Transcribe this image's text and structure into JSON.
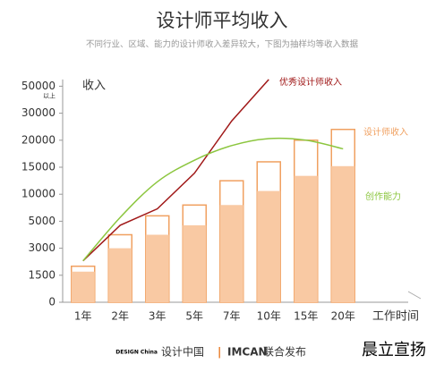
{
  "chart_data": {
    "type": "bar",
    "title": "设计师平均收入",
    "subtitle": "不同行业、区域、能力的设计师收入差异较大，下图为抽样均等收入数据",
    "y_label": "收入",
    "x_label": "工作时间",
    "top_tick_note": "以上",
    "categories": [
      "1年",
      "2年",
      "3年",
      "5年",
      "7年",
      "10年",
      "15年",
      "20年"
    ],
    "ylim": [
      0,
      55000
    ],
    "yticks": [
      0,
      1500,
      3000,
      5000,
      10000,
      15000,
      20000,
      30000,
      50000
    ],
    "series": [
      {
        "name": "设计师收入",
        "color": "#f0a060",
        "values": [
          2000,
          4000,
          6000,
          8000,
          12500,
          16000,
          20000,
          24000
        ]
      },
      {
        "color": "#f9c9a3",
        "values": [
          1700,
          3000,
          4000,
          4700,
          8000,
          10600,
          13400,
          15200
        ]
      },
      {
        "name": "优秀设计师收入",
        "color": "#a01818",
        "type": "line",
        "values": [
          2300,
          4700,
          7300,
          13900,
          27100,
          55000,
          null,
          null
        ]
      },
      {
        "name": "创作能力",
        "color": "#8cc63f",
        "type": "line",
        "values": [
          2300,
          5700,
          12300,
          16300,
          19000,
          20600,
          20000,
          18400
        ]
      }
    ],
    "footer": {
      "brand": "设计中国",
      "logo": "DESIGN China",
      "separator": "|",
      "partner": "IMCAN",
      "note": "联合发布"
    },
    "watermark": "晨立宣扬"
  }
}
